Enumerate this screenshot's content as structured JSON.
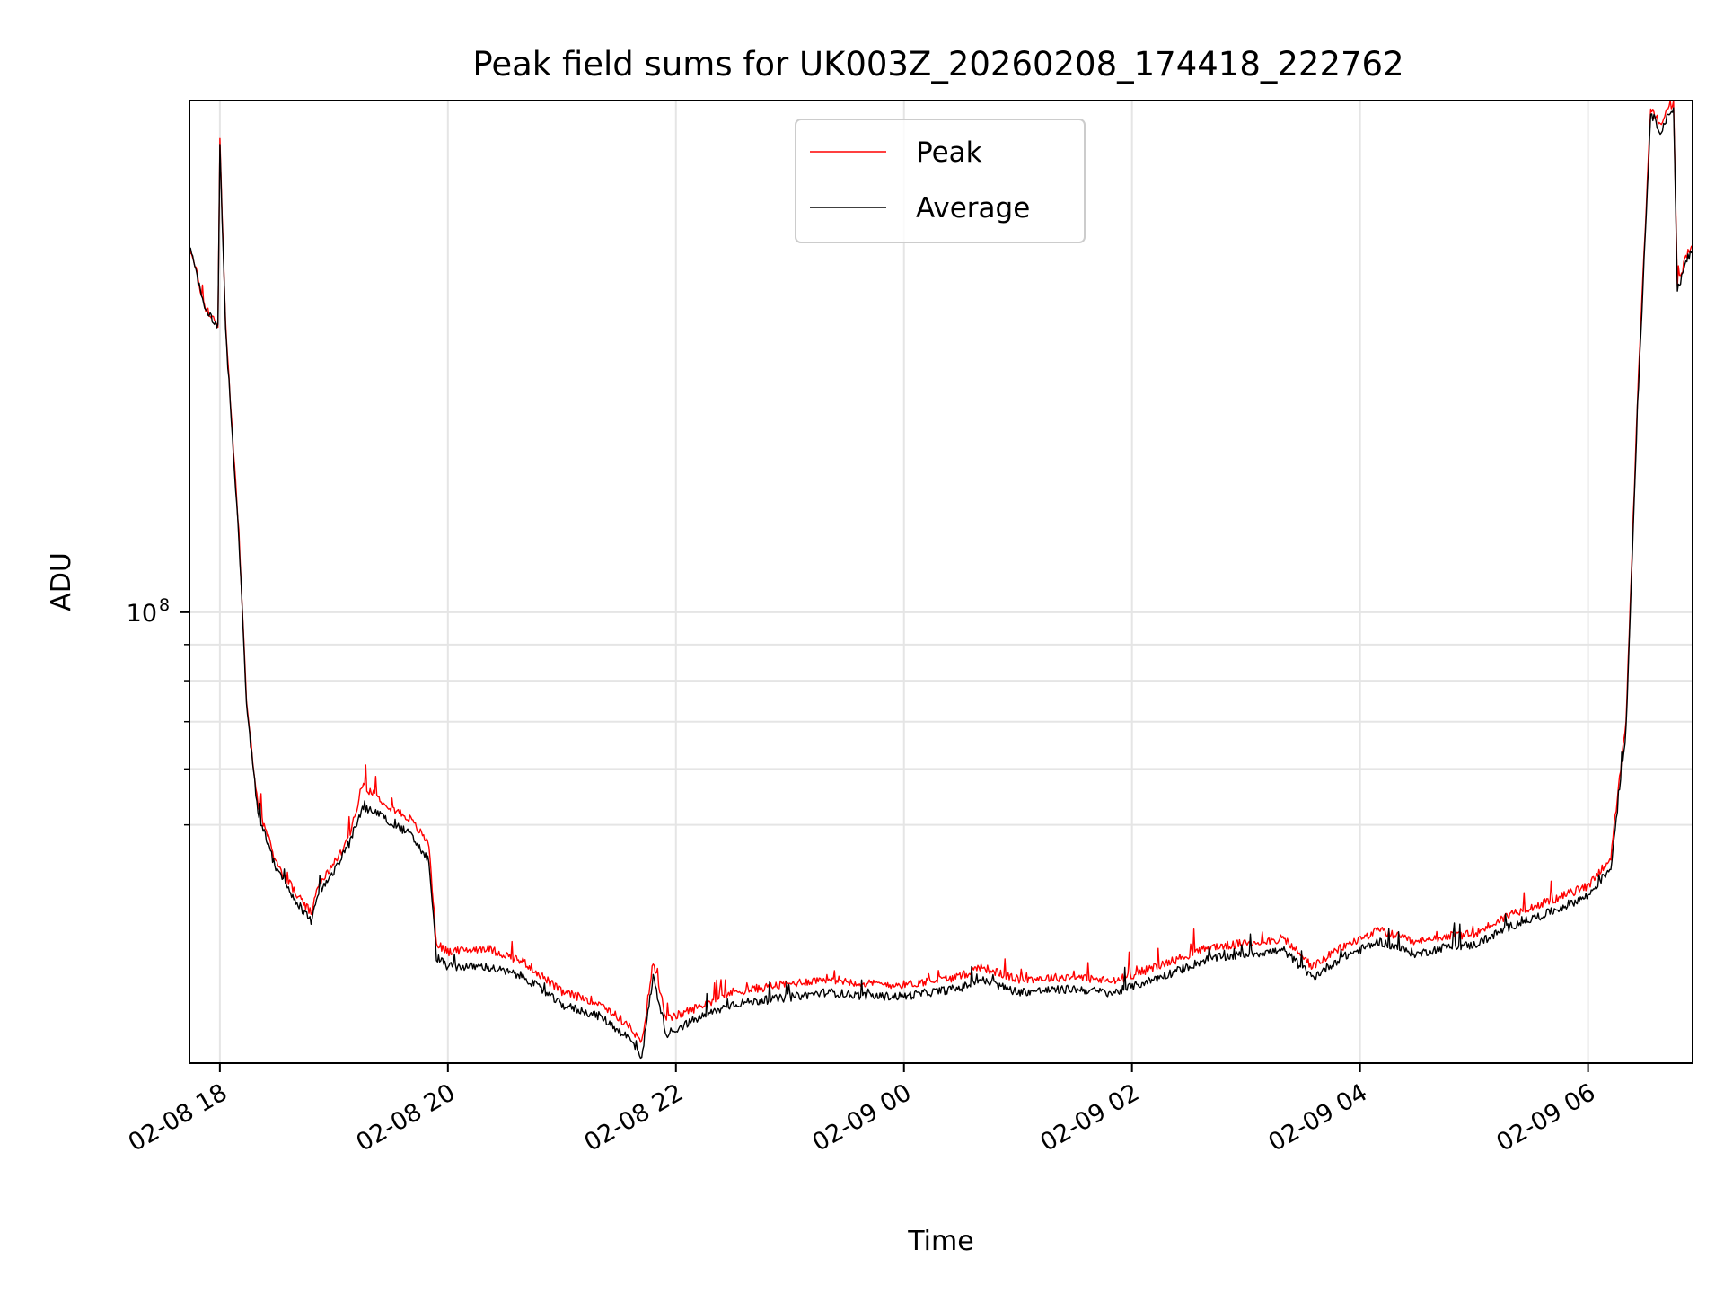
{
  "chart_data": {
    "type": "line",
    "title": "Peak field sums for UK003Z_20260208_174418_222762",
    "xlabel": "Time",
    "ylabel": "ADU",
    "y_scale": "log",
    "y_tick_labels": [
      {
        "value": 100000000,
        "base": "10",
        "exp": "8"
      }
    ],
    "y_minor_ticks": [
      50000000,
      60000000,
      70000000,
      80000000,
      90000000
    ],
    "xlim": [
      "2026-02-08 17:44",
      "2026-02-09 06:55"
    ],
    "ylim": [
      23000000,
      530000000
    ],
    "x_ticks": [
      {
        "time": "2026-02-08 18:00",
        "label": "02-08 18"
      },
      {
        "time": "2026-02-08 20:00",
        "label": "02-08 20"
      },
      {
        "time": "2026-02-08 22:00",
        "label": "02-08 22"
      },
      {
        "time": "2026-02-09 00:00",
        "label": "02-09 00"
      },
      {
        "time": "2026-02-09 02:00",
        "label": "02-09 02"
      },
      {
        "time": "2026-02-09 04:00",
        "label": "02-09 04"
      },
      {
        "time": "2026-02-09 06:00",
        "label": "02-09 06"
      }
    ],
    "grid": true,
    "legend_position": "upper center",
    "series": [
      {
        "name": "Peak",
        "color": "#ff0000",
        "points": [
          [
            "2026-02-08 17:44",
            330000000
          ],
          [
            "2026-02-08 17:48",
            300000000
          ],
          [
            "2026-02-08 17:52",
            270000000
          ],
          [
            "2026-02-08 17:56",
            262000000
          ],
          [
            "2026-02-08 17:59",
            255000000
          ],
          [
            "2026-02-08 18:00",
            465000000
          ],
          [
            "2026-02-08 18:03",
            255000000
          ],
          [
            "2026-02-08 18:06",
            190000000
          ],
          [
            "2026-02-08 18:10",
            130000000
          ],
          [
            "2026-02-08 18:14",
            75000000
          ],
          [
            "2026-02-08 18:20",
            53000000
          ],
          [
            "2026-02-08 18:30",
            44000000
          ],
          [
            "2026-02-08 18:40",
            40000000
          ],
          [
            "2026-02-08 18:48",
            37500000
          ],
          [
            "2026-02-08 18:52",
            41000000
          ],
          [
            "2026-02-08 19:00",
            44000000
          ],
          [
            "2026-02-08 19:08",
            48000000
          ],
          [
            "2026-02-08 19:15",
            57000000
          ],
          [
            "2026-02-08 19:22",
            55000000
          ],
          [
            "2026-02-08 19:30",
            53000000
          ],
          [
            "2026-02-08 19:40",
            51000000
          ],
          [
            "2026-02-08 19:50",
            47000000
          ],
          [
            "2026-02-08 19:54",
            34000000
          ],
          [
            "2026-02-08 20:00",
            33000000
          ],
          [
            "2026-02-08 20:20",
            33500000
          ],
          [
            "2026-02-08 20:40",
            32000000
          ],
          [
            "2026-02-08 21:00",
            29000000
          ],
          [
            "2026-02-08 21:20",
            28000000
          ],
          [
            "2026-02-08 21:35",
            26000000
          ],
          [
            "2026-02-08 21:42",
            24500000
          ],
          [
            "2026-02-08 21:48",
            32000000
          ],
          [
            "2026-02-08 21:55",
            26500000
          ],
          [
            "2026-02-08 22:10",
            27500000
          ],
          [
            "2026-02-08 22:30",
            29000000
          ],
          [
            "2026-02-08 23:00",
            29800000
          ],
          [
            "2026-02-08 23:20",
            30300000
          ],
          [
            "2026-02-08 23:40",
            29800000
          ],
          [
            "2026-02-09 00:00",
            29700000
          ],
          [
            "2026-02-09 00:30",
            30500000
          ],
          [
            "2026-02-09 00:40",
            31500000
          ],
          [
            "2026-02-09 01:00",
            30200000
          ],
          [
            "2026-02-09 01:30",
            30500000
          ],
          [
            "2026-02-09 01:50",
            30000000
          ],
          [
            "2026-02-09 02:20",
            32000000
          ],
          [
            "2026-02-09 02:40",
            33500000
          ],
          [
            "2026-02-09 03:00",
            34000000
          ],
          [
            "2026-02-09 03:20",
            34500000
          ],
          [
            "2026-02-09 03:35",
            31500000
          ],
          [
            "2026-02-09 03:50",
            33500000
          ],
          [
            "2026-02-09 04:10",
            35500000
          ],
          [
            "2026-02-09 04:30",
            34000000
          ],
          [
            "2026-02-09 04:45",
            34800000
          ],
          [
            "2026-02-09 05:00",
            35000000
          ],
          [
            "2026-02-09 05:20",
            37500000
          ],
          [
            "2026-02-09 05:40",
            39000000
          ],
          [
            "2026-02-09 06:00",
            41000000
          ],
          [
            "2026-02-09 06:12",
            45000000
          ],
          [
            "2026-02-09 06:20",
            70000000
          ],
          [
            "2026-02-09 06:26",
            200000000
          ],
          [
            "2026-02-09 06:33",
            520000000
          ],
          [
            "2026-02-09 06:38",
            490000000
          ],
          [
            "2026-02-09 06:45",
            530000000
          ],
          [
            "2026-02-09 06:47",
            290000000
          ],
          [
            "2026-02-09 06:52",
            320000000
          ],
          [
            "2026-02-09 06:55",
            330000000
          ]
        ]
      },
      {
        "name": "Average",
        "color": "#000000",
        "points": [
          [
            "2026-02-08 17:44",
            330000000
          ],
          [
            "2026-02-08 17:48",
            298000000
          ],
          [
            "2026-02-08 17:52",
            268000000
          ],
          [
            "2026-02-08 17:56",
            260000000
          ],
          [
            "2026-02-08 17:59",
            253000000
          ],
          [
            "2026-02-08 18:00",
            460000000
          ],
          [
            "2026-02-08 18:03",
            252000000
          ],
          [
            "2026-02-08 18:06",
            188000000
          ],
          [
            "2026-02-08 18:10",
            128000000
          ],
          [
            "2026-02-08 18:14",
            74000000
          ],
          [
            "2026-02-08 18:20",
            52000000
          ],
          [
            "2026-02-08 18:30",
            43000000
          ],
          [
            "2026-02-08 18:40",
            39000000
          ],
          [
            "2026-02-08 18:48",
            36500000
          ],
          [
            "2026-02-08 18:52",
            40000000
          ],
          [
            "2026-02-08 19:00",
            43000000
          ],
          [
            "2026-02-08 19:08",
            47000000
          ],
          [
            "2026-02-08 19:15",
            53000000
          ],
          [
            "2026-02-08 19:22",
            52000000
          ],
          [
            "2026-02-08 19:30",
            50500000
          ],
          [
            "2026-02-08 19:40",
            48500000
          ],
          [
            "2026-02-08 19:50",
            44500000
          ],
          [
            "2026-02-08 19:54",
            32500000
          ],
          [
            "2026-02-08 20:00",
            31500000
          ],
          [
            "2026-02-08 20:20",
            31500000
          ],
          [
            "2026-02-08 20:40",
            30500000
          ],
          [
            "2026-02-08 21:00",
            27800000
          ],
          [
            "2026-02-08 21:20",
            26800000
          ],
          [
            "2026-02-08 21:35",
            25000000
          ],
          [
            "2026-02-08 21:42",
            23500000
          ],
          [
            "2026-02-08 21:48",
            30500000
          ],
          [
            "2026-02-08 21:55",
            25300000
          ],
          [
            "2026-02-08 22:10",
            26500000
          ],
          [
            "2026-02-08 22:30",
            27900000
          ],
          [
            "2026-02-08 23:00",
            28500000
          ],
          [
            "2026-02-08 23:20",
            29000000
          ],
          [
            "2026-02-08 23:40",
            28600000
          ],
          [
            "2026-02-09 00:00",
            28600000
          ],
          [
            "2026-02-09 00:30",
            29400000
          ],
          [
            "2026-02-09 00:40",
            30200000
          ],
          [
            "2026-02-09 01:00",
            29000000
          ],
          [
            "2026-02-09 01:30",
            29300000
          ],
          [
            "2026-02-09 01:50",
            28900000
          ],
          [
            "2026-02-09 02:20",
            30800000
          ],
          [
            "2026-02-09 02:40",
            32300000
          ],
          [
            "2026-02-09 03:00",
            32800000
          ],
          [
            "2026-02-09 03:20",
            33200000
          ],
          [
            "2026-02-09 03:35",
            30400000
          ],
          [
            "2026-02-09 03:50",
            32400000
          ],
          [
            "2026-02-09 04:10",
            34200000
          ],
          [
            "2026-02-09 04:30",
            32800000
          ],
          [
            "2026-02-09 04:45",
            33600000
          ],
          [
            "2026-02-09 05:00",
            33800000
          ],
          [
            "2026-02-09 05:20",
            36000000
          ],
          [
            "2026-02-09 05:40",
            37600000
          ],
          [
            "2026-02-09 06:00",
            39700000
          ],
          [
            "2026-02-09 06:12",
            43500000
          ],
          [
            "2026-02-09 06:20",
            68000000
          ],
          [
            "2026-02-09 06:26",
            195000000
          ],
          [
            "2026-02-09 06:33",
            510000000
          ],
          [
            "2026-02-09 06:38",
            480000000
          ],
          [
            "2026-02-09 06:45",
            520000000
          ],
          [
            "2026-02-09 06:47",
            285000000
          ],
          [
            "2026-02-09 06:52",
            315000000
          ],
          [
            "2026-02-09 06:55",
            325000000
          ]
        ]
      }
    ]
  }
}
